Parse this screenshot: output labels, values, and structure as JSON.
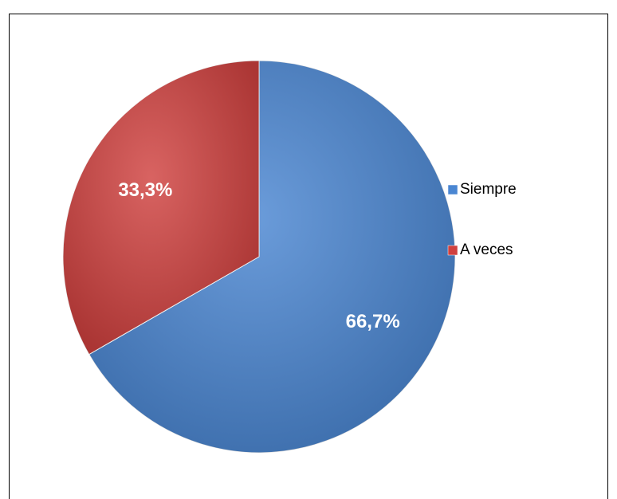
{
  "chart_data": {
    "type": "pie",
    "categories": [
      "Siempre",
      "A veces"
    ],
    "values": [
      66.7,
      33.3
    ],
    "value_labels": [
      "66,7%",
      "33,3%"
    ],
    "colors": [
      "#4a86d2",
      "#d0413f"
    ],
    "legend": "right"
  }
}
